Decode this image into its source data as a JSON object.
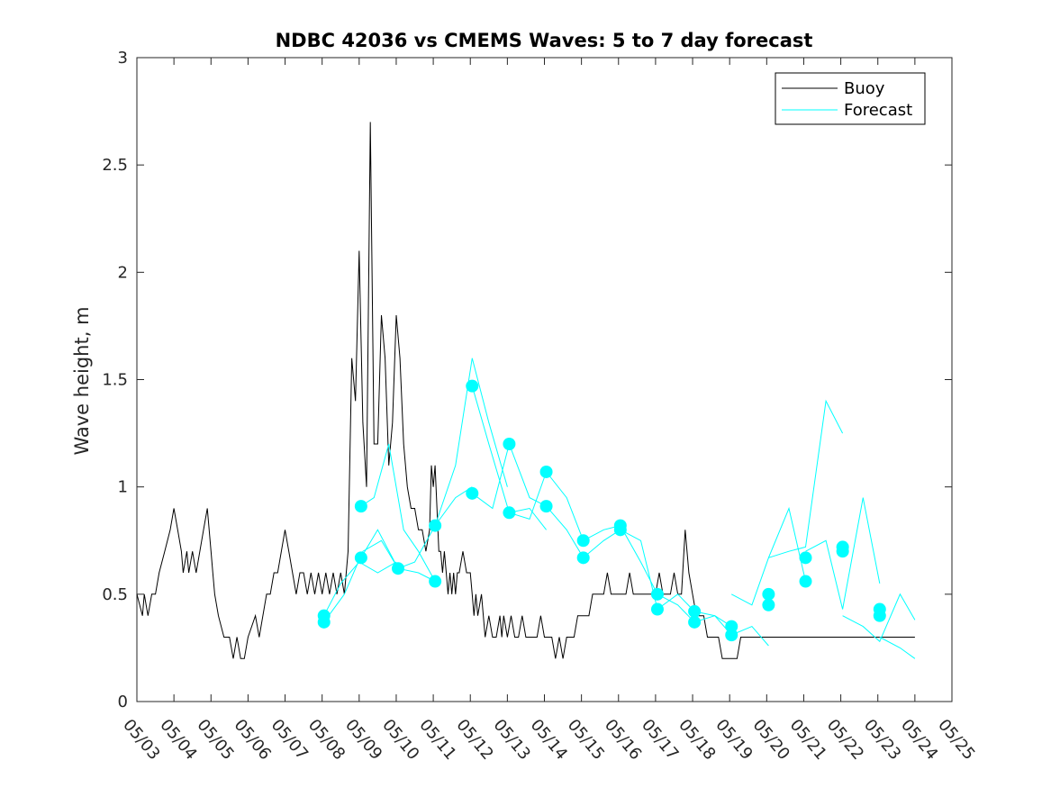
{
  "chart_data": {
    "type": "line",
    "title": "NDBC 42036 vs CMEMS Waves: 5 to 7 day forecast",
    "xlabel": "",
    "ylabel": "Wave height, m",
    "ylim": [
      0,
      3
    ],
    "yticks": [
      "0",
      "0.5",
      "1",
      "1.5",
      "2",
      "2.5",
      "3"
    ],
    "xlim": [
      "05/03",
      "05/25"
    ],
    "xticks": [
      "05/03",
      "05/04",
      "05/05",
      "05/06",
      "05/07",
      "05/08",
      "05/09",
      "05/10",
      "05/11",
      "05/12",
      "05/13",
      "05/14",
      "05/15",
      "05/16",
      "05/17",
      "05/18",
      "05/19",
      "05/20",
      "05/21",
      "05/22",
      "05/23",
      "05/24",
      "05/25"
    ],
    "x_units": "days since 05/03",
    "grid": false,
    "legend": {
      "placement": "top-right",
      "entries": [
        "Buoy",
        "Forecast"
      ]
    },
    "colors": {
      "buoy": "#000000",
      "forecast": "#00FFFF"
    },
    "series": [
      {
        "name": "Buoy",
        "x": [
          0,
          0.15,
          0.2,
          0.3,
          0.4,
          0.5,
          0.6,
          0.75,
          0.9,
          1.0,
          1.1,
          1.2,
          1.25,
          1.35,
          1.4,
          1.5,
          1.6,
          1.7,
          1.8,
          1.9,
          2.0,
          2.05,
          2.1,
          2.2,
          2.35,
          2.5,
          2.6,
          2.7,
          2.8,
          2.9,
          3.0,
          3.2,
          3.3,
          3.4,
          3.5,
          3.6,
          3.7,
          3.8,
          3.9,
          4.0,
          4.1,
          4.2,
          4.3,
          4.4,
          4.5,
          4.6,
          4.7,
          4.8,
          4.9,
          5.0,
          5.1,
          5.2,
          5.3,
          5.4,
          5.5,
          5.6,
          5.7,
          5.8,
          5.9,
          6.0,
          6.1,
          6.2,
          6.3,
          6.4,
          6.5,
          6.6,
          6.7,
          6.8,
          6.9,
          7.0,
          7.1,
          7.2,
          7.3,
          7.4,
          7.5,
          7.6,
          7.7,
          7.8,
          7.9,
          7.95,
          8.0,
          8.05,
          8.1,
          8.15,
          8.2,
          8.25,
          8.3,
          8.35,
          8.4,
          8.45,
          8.5,
          8.55,
          8.6,
          8.65,
          8.7,
          8.8,
          8.9,
          9.0,
          9.05,
          9.1,
          9.15,
          9.2,
          9.3,
          9.4,
          9.5,
          9.6,
          9.7,
          9.8,
          9.85,
          9.9,
          10.0,
          10.1,
          10.2,
          10.3,
          10.4,
          10.5,
          10.6,
          10.7,
          10.8,
          10.9,
          11.0,
          11.1,
          11.2,
          11.3,
          11.4,
          11.5,
          11.6,
          11.7,
          11.8,
          11.9,
          12.0,
          12.1,
          12.2,
          12.3,
          12.4,
          12.5,
          12.6,
          12.7,
          12.8,
          12.9,
          13.0,
          13.1,
          13.2,
          13.3,
          13.4,
          13.5,
          13.6,
          13.7,
          13.8,
          13.9,
          14.0,
          14.1,
          14.2,
          14.3,
          14.4,
          14.5,
          14.6,
          14.7,
          14.8,
          14.9,
          15.0,
          15.1,
          15.2,
          15.3,
          15.4,
          15.5,
          15.6,
          15.7,
          15.8,
          15.9,
          16.0,
          16.1,
          16.2,
          16.3,
          16.4,
          16.5,
          16.6,
          16.7,
          16.8,
          16.9,
          17.0,
          17.1,
          17.2,
          17.3,
          17.4,
          17.5,
          17.6,
          17.7,
          17.8,
          17.9,
          18.0,
          18.1,
          18.2,
          18.3,
          18.4,
          18.5,
          18.6,
          18.7,
          18.8,
          18.9,
          19.0,
          19.1,
          19.2,
          19.3,
          19.4,
          19.5,
          19.6,
          19.7,
          19.8,
          19.9,
          20.0,
          20.1,
          20.2,
          20.3,
          20.4,
          20.5,
          20.6,
          20.7,
          20.8,
          20.9,
          21.0
        ],
        "y": [
          0.5,
          0.4,
          0.5,
          0.4,
          0.5,
          0.5,
          0.6,
          0.7,
          0.8,
          0.9,
          0.8,
          0.7,
          0.6,
          0.7,
          0.6,
          0.7,
          0.6,
          0.7,
          0.8,
          0.9,
          0.7,
          0.6,
          0.5,
          0.4,
          0.3,
          0.3,
          0.2,
          0.3,
          0.2,
          0.2,
          0.3,
          0.4,
          0.3,
          0.4,
          0.5,
          0.5,
          0.6,
          0.6,
          0.7,
          0.8,
          0.7,
          0.6,
          0.5,
          0.6,
          0.6,
          0.5,
          0.6,
          0.5,
          0.6,
          0.5,
          0.6,
          0.5,
          0.6,
          0.5,
          0.6,
          0.5,
          0.7,
          1.6,
          1.4,
          2.1,
          1.3,
          1.0,
          2.7,
          1.2,
          1.2,
          1.8,
          1.6,
          1.1,
          1.3,
          1.8,
          1.6,
          1.2,
          1.0,
          0.9,
          0.9,
          0.8,
          0.8,
          0.7,
          0.8,
          1.1,
          1.0,
          1.1,
          0.9,
          0.7,
          0.7,
          0.6,
          0.7,
          0.6,
          0.5,
          0.6,
          0.5,
          0.6,
          0.5,
          0.6,
          0.6,
          0.7,
          0.6,
          0.6,
          0.5,
          0.4,
          0.5,
          0.4,
          0.5,
          0.3,
          0.4,
          0.3,
          0.3,
          0.4,
          0.3,
          0.4,
          0.3,
          0.4,
          0.3,
          0.3,
          0.4,
          0.3,
          0.3,
          0.3,
          0.3,
          0.4,
          0.3,
          0.3,
          0.3,
          0.2,
          0.3,
          0.2,
          0.3,
          0.3,
          0.3,
          0.4,
          0.4,
          0.4,
          0.4,
          0.5,
          0.5,
          0.5,
          0.5,
          0.6,
          0.5,
          0.5,
          0.5,
          0.5,
          0.5,
          0.6,
          0.5,
          0.5,
          0.5,
          0.5,
          0.5,
          0.5,
          0.5,
          0.6,
          0.5,
          0.5,
          0.5,
          0.6,
          0.5,
          0.5,
          0.8,
          0.6,
          0.5,
          0.4,
          0.4,
          0.4,
          0.3,
          0.3,
          0.3,
          0.3,
          0.2,
          0.2,
          0.2,
          0.2,
          0.2,
          0.3,
          0.3,
          0.3,
          0.3,
          0.3,
          0.3,
          0.3,
          0.3,
          0.3,
          0.3,
          0.3,
          0.3,
          0.3,
          0.3,
          0.3,
          0.3,
          0.3,
          0.3,
          0.3,
          0.3,
          0.3,
          0.3,
          0.3,
          0.3,
          0.3,
          0.3,
          0.3,
          0.3,
          0.3,
          0.3,
          0.3,
          0.3,
          0.3,
          0.3,
          0.3,
          0.3,
          0.3,
          0.3,
          0.3,
          0.3,
          0.3,
          0.3,
          0.3,
          0.3,
          0.3,
          0.3,
          0.3,
          0.3
        ]
      },
      {
        "name": "Forecast",
        "segments": [
          {
            "x": [
              5.05,
              5.5,
              6.0,
              6.5,
              7.0
            ],
            "y": [
              0.4,
              0.55,
              0.65,
              0.6,
              0.65
            ]
          },
          {
            "x": [
              5.05,
              5.6,
              6.1,
              6.6,
              7.05
            ],
            "y": [
              0.37,
              0.5,
              0.7,
              0.75,
              0.62
            ]
          },
          {
            "x": [
              6.05,
              6.4,
              6.8,
              7.2,
              7.6,
              8.05
            ],
            "y": [
              0.91,
              0.95,
              1.2,
              0.8,
              0.7,
              0.56
            ]
          },
          {
            "x": [
              6.05,
              6.5,
              7.05,
              7.6,
              8.05
            ],
            "y": [
              0.67,
              0.8,
              0.62,
              0.6,
              0.56
            ]
          },
          {
            "x": [
              7.05,
              7.5,
              8.05,
              8.6,
              9.05
            ],
            "y": [
              0.62,
              0.65,
              0.82,
              0.95,
              1.0
            ]
          },
          {
            "x": [
              8.05,
              8.6,
              9.05,
              9.5,
              10.0
            ],
            "y": [
              0.82,
              1.1,
              1.6,
              1.3,
              1.0
            ]
          },
          {
            "x": [
              9.05,
              9.5,
              10.05,
              10.6,
              11.05
            ],
            "y": [
              1.47,
              1.2,
              0.88,
              0.9,
              0.8
            ]
          },
          {
            "x": [
              9.05,
              9.6,
              10.05,
              10.6,
              11.05
            ],
            "y": [
              0.97,
              0.9,
              1.2,
              0.95,
              0.91
            ]
          },
          {
            "x": [
              10.05,
              10.6,
              11.05,
              11.6,
              12.05
            ],
            "y": [
              0.88,
              0.85,
              1.07,
              0.95,
              0.75
            ]
          },
          {
            "x": [
              11.05,
              11.6,
              12.05,
              12.6,
              13.05
            ],
            "y": [
              0.91,
              0.8,
              0.67,
              0.75,
              0.8
            ]
          },
          {
            "x": [
              12.05,
              12.6,
              13.05,
              13.6,
              14.05
            ],
            "y": [
              0.75,
              0.8,
              0.82,
              0.65,
              0.5
            ]
          },
          {
            "x": [
              13.05,
              13.6,
              14.05,
              14.6,
              15.05
            ],
            "y": [
              0.8,
              0.75,
              0.43,
              0.5,
              0.42
            ]
          },
          {
            "x": [
              14.05,
              14.6,
              15.05,
              15.6,
              16.05
            ],
            "y": [
              0.5,
              0.45,
              0.37,
              0.4,
              0.35
            ]
          },
          {
            "x": [
              15.05,
              15.6,
              16.05,
              16.6,
              17.05
            ],
            "y": [
              0.42,
              0.4,
              0.31,
              0.35,
              0.26
            ]
          },
          {
            "x": [
              16.05,
              16.6,
              17.05,
              17.6,
              18.05
            ],
            "y": [
              0.5,
              0.45,
              0.67,
              0.9,
              0.56
            ]
          },
          {
            "x": [
              17.05,
              17.6,
              18.05,
              18.6,
              19.05
            ],
            "y": [
              0.67,
              0.7,
              0.72,
              1.4,
              1.25
            ]
          },
          {
            "x": [
              18.05,
              18.6,
              19.05,
              19.6,
              20.05
            ],
            "y": [
              0.7,
              0.75,
              0.43,
              0.95,
              0.55
            ]
          },
          {
            "x": [
              19.05,
              19.6,
              20.05,
              20.6,
              21.0
            ],
            "y": [
              0.4,
              0.35,
              0.28,
              0.5,
              0.38
            ]
          },
          {
            "x": [
              20.05,
              20.6,
              21.0
            ],
            "y": [
              0.3,
              0.25,
              0.2
            ]
          }
        ]
      }
    ],
    "markers": {
      "x": [
        5.05,
        5.05,
        6.05,
        6.05,
        7.05,
        8.05,
        8.05,
        9.05,
        9.05,
        10.05,
        10.05,
        11.05,
        11.05,
        12.05,
        12.05,
        13.05,
        13.05,
        14.05,
        14.05,
        15.05,
        15.05,
        16.05,
        16.05,
        17.05,
        17.05,
        18.05,
        18.05,
        19.05,
        19.05,
        20.05,
        20.05
      ],
      "y": [
        0.4,
        0.37,
        0.91,
        0.67,
        0.62,
        0.82,
        0.56,
        1.47,
        0.97,
        1.2,
        0.88,
        1.07,
        0.91,
        0.75,
        0.67,
        0.82,
        0.8,
        0.5,
        0.43,
        0.42,
        0.37,
        0.35,
        0.31,
        0.5,
        0.45,
        0.67,
        0.56,
        0.72,
        0.7,
        0.43,
        0.4
      ]
    }
  }
}
